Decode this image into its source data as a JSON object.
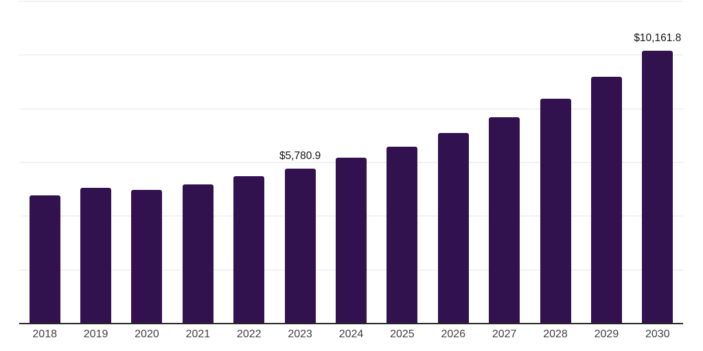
{
  "chart_data": {
    "type": "bar",
    "categories": [
      "2018",
      "2019",
      "2020",
      "2021",
      "2022",
      "2023",
      "2024",
      "2025",
      "2026",
      "2027",
      "2028",
      "2029",
      "2030"
    ],
    "values": [
      4765,
      5065,
      4980,
      5175,
      5480,
      5780.9,
      6175,
      6590,
      7110,
      7695,
      8380,
      9185,
      10161.8
    ],
    "data_labels": [
      "",
      "",
      "",
      "",
      "",
      "$5,780.9",
      "",
      "",
      "",
      "",
      "",
      "",
      "$10,161.8"
    ],
    "title": "",
    "xlabel": "",
    "ylabel": "",
    "ylim": [
      0,
      12000
    ],
    "gridline_interval": 2000,
    "grid": "horizontal",
    "legend": "none",
    "bar_color": "#32124e",
    "gridline_color": "#f2f2f2",
    "axis_line_color": "#262626",
    "x_label_color": "#3f3f3f",
    "data_label_color": "#111111"
  }
}
